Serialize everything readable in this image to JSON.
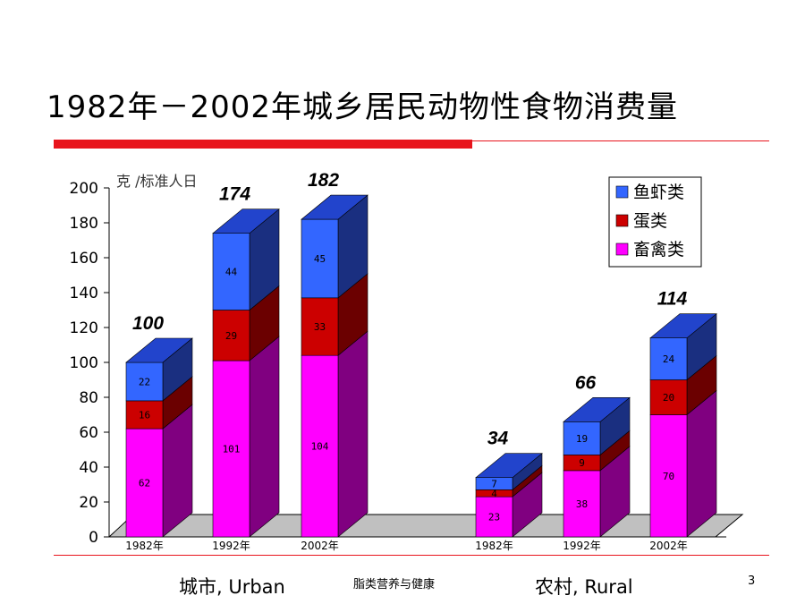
{
  "slide": {
    "title": "1982年－2002年城乡居民动物性食物消费量",
    "footer_center": "脂类营养与健康",
    "page_number": "3",
    "group_urban": "城市, Urban",
    "group_rural": "农村, Rural"
  },
  "colors": {
    "accent_rule": "#e8141c",
    "livestock_front": "#ff00ff",
    "livestock_side": "#800080",
    "egg_front": "#cc0000",
    "egg_side": "#6b0000",
    "fish_front": "#3366ff",
    "fish_side": "#1a2f80",
    "fish_top": "#2244cc"
  },
  "chart_data": {
    "type": "bar",
    "stacked": true,
    "three_d": true,
    "ylabel": "克 /标准人日",
    "ylim": [
      0,
      200
    ],
    "yticks": [
      0,
      20,
      40,
      60,
      80,
      100,
      120,
      140,
      160,
      180,
      200
    ],
    "categories": [
      "1982年",
      "1992年",
      "2002年",
      "1982年",
      "1992年",
      "2002年"
    ],
    "groups": [
      {
        "name": "城市, Urban",
        "categories": [
          "1982年",
          "1992年",
          "2002年"
        ]
      },
      {
        "name": "农村, Rural",
        "categories": [
          "1982年",
          "1992年",
          "2002年"
        ]
      }
    ],
    "series": [
      {
        "name": "畜禽类",
        "values": [
          62,
          101,
          104,
          23,
          38,
          70
        ]
      },
      {
        "name": "蛋类",
        "values": [
          16,
          29,
          33,
          4,
          9,
          20
        ]
      },
      {
        "name": "鱼虾类",
        "values": [
          22,
          44,
          45,
          7,
          19,
          24
        ]
      }
    ],
    "totals": [
      100,
      174,
      182,
      34,
      66,
      114
    ],
    "legend": [
      "鱼虾类",
      "蛋类",
      "畜禽类"
    ],
    "legend_position": "top-right",
    "grid": false
  }
}
